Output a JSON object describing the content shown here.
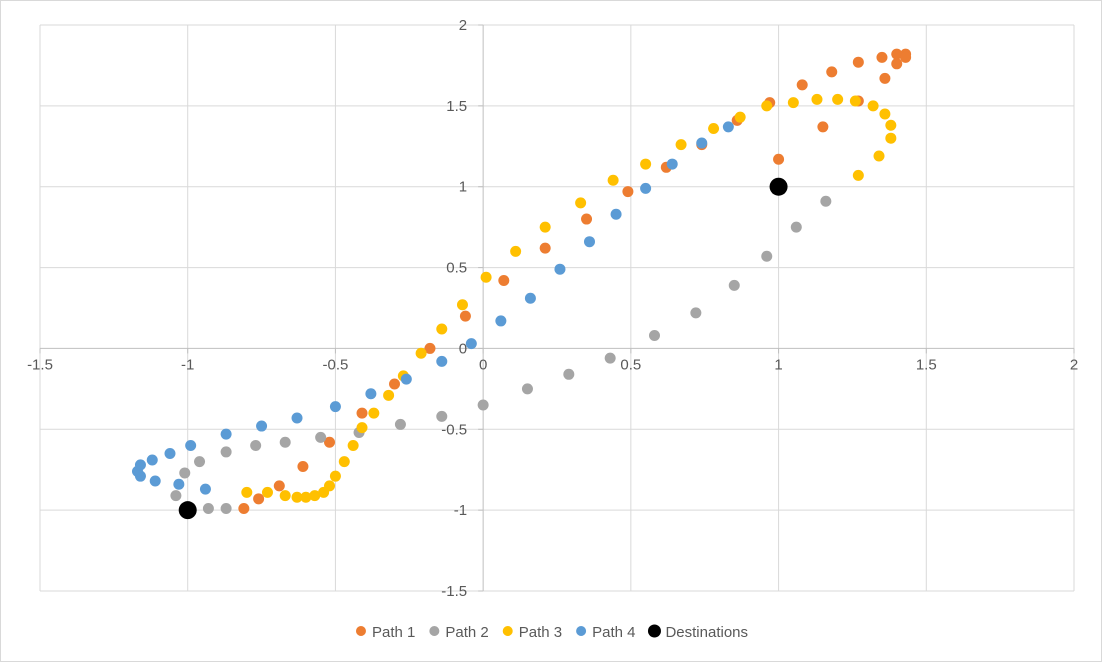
{
  "chart_data": {
    "type": "scatter",
    "title": "",
    "xlabel": "",
    "ylabel": "",
    "xlim": [
      -1.5,
      2
    ],
    "ylim": [
      -1.5,
      2
    ],
    "x_ticks": [
      -1.5,
      -1,
      -0.5,
      0,
      0.5,
      1,
      1.5,
      2
    ],
    "y_ticks": [
      -1.5,
      -1,
      -0.5,
      0,
      0.5,
      1,
      1.5,
      2
    ],
    "x_tick_labels": [
      "-1.5",
      "-1",
      "-0.5",
      "0",
      "0.5",
      "1",
      "1.5",
      "2"
    ],
    "y_tick_labels": [
      "-1.5",
      "-1",
      "-0.5",
      "0",
      "0.5",
      "1",
      "1.5",
      "2"
    ],
    "grid": true,
    "legend_position": "bottom",
    "series": [
      {
        "name": "Path 1",
        "color": "#ED7D31",
        "points": [
          [
            -0.81,
            -0.99
          ],
          [
            -0.76,
            -0.93
          ],
          [
            -0.69,
            -0.85
          ],
          [
            -0.61,
            -0.73
          ],
          [
            -0.52,
            -0.58
          ],
          [
            -0.41,
            -0.4
          ],
          [
            -0.3,
            -0.22
          ],
          [
            -0.18,
            0.0
          ],
          [
            -0.06,
            0.2
          ],
          [
            0.07,
            0.42
          ],
          [
            0.21,
            0.62
          ],
          [
            0.35,
            0.8
          ],
          [
            0.49,
            0.97
          ],
          [
            0.62,
            1.12
          ],
          [
            0.74,
            1.26
          ],
          [
            0.86,
            1.41
          ],
          [
            0.97,
            1.52
          ],
          [
            1.08,
            1.63
          ],
          [
            1.18,
            1.71
          ],
          [
            1.27,
            1.77
          ],
          [
            1.35,
            1.8
          ],
          [
            1.4,
            1.82
          ],
          [
            1.43,
            1.82
          ],
          [
            1.43,
            1.8
          ],
          [
            1.4,
            1.76
          ],
          [
            1.36,
            1.67
          ],
          [
            1.27,
            1.53
          ],
          [
            1.15,
            1.37
          ],
          [
            1.0,
            1.17
          ]
        ]
      },
      {
        "name": "Path 2",
        "color": "#A5A5A5",
        "points": [
          [
            -1.04,
            -0.91
          ],
          [
            -1.01,
            -0.77
          ],
          [
            -0.96,
            -0.7
          ],
          [
            -0.87,
            -0.64
          ],
          [
            -0.77,
            -0.6
          ],
          [
            -0.67,
            -0.58
          ],
          [
            -0.55,
            -0.55
          ],
          [
            -0.42,
            -0.52
          ],
          [
            -0.28,
            -0.47
          ],
          [
            -0.14,
            -0.42
          ],
          [
            0.0,
            -0.35
          ],
          [
            0.15,
            -0.25
          ],
          [
            0.29,
            -0.16
          ],
          [
            0.43,
            -0.06
          ],
          [
            0.58,
            0.08
          ],
          [
            0.72,
            0.22
          ],
          [
            0.85,
            0.39
          ],
          [
            0.96,
            0.57
          ],
          [
            1.06,
            0.75
          ],
          [
            1.16,
            0.91
          ],
          [
            -0.87,
            -0.99
          ],
          [
            -0.93,
            -0.99
          ],
          [
            -1.0,
            -0.99
          ]
        ]
      },
      {
        "name": "Path 3",
        "color": "#FFC000",
        "points": [
          [
            -0.8,
            -0.89
          ],
          [
            -0.73,
            -0.89
          ],
          [
            -0.67,
            -0.91
          ],
          [
            -0.63,
            -0.92
          ],
          [
            -0.6,
            -0.92
          ],
          [
            -0.57,
            -0.91
          ],
          [
            -0.54,
            -0.89
          ],
          [
            -0.52,
            -0.85
          ],
          [
            -0.5,
            -0.79
          ],
          [
            -0.47,
            -0.7
          ],
          [
            -0.44,
            -0.6
          ],
          [
            -0.41,
            -0.49
          ],
          [
            -0.37,
            -0.4
          ],
          [
            -0.32,
            -0.29
          ],
          [
            -0.27,
            -0.17
          ],
          [
            -0.21,
            -0.03
          ],
          [
            -0.14,
            0.12
          ],
          [
            -0.07,
            0.27
          ],
          [
            0.01,
            0.44
          ],
          [
            0.11,
            0.6
          ],
          [
            0.21,
            0.75
          ],
          [
            0.33,
            0.9
          ],
          [
            0.44,
            1.04
          ],
          [
            0.55,
            1.14
          ],
          [
            0.67,
            1.26
          ],
          [
            0.78,
            1.36
          ],
          [
            0.87,
            1.43
          ],
          [
            0.96,
            1.5
          ],
          [
            1.05,
            1.52
          ],
          [
            1.13,
            1.54
          ],
          [
            1.2,
            1.54
          ],
          [
            1.26,
            1.53
          ],
          [
            1.32,
            1.5
          ],
          [
            1.36,
            1.45
          ],
          [
            1.38,
            1.38
          ],
          [
            1.38,
            1.3
          ],
          [
            1.34,
            1.19
          ],
          [
            1.27,
            1.07
          ]
        ]
      },
      {
        "name": "Path 4",
        "color": "#5B9BD5",
        "points": [
          [
            -0.94,
            -0.87
          ],
          [
            -1.03,
            -0.84
          ],
          [
            -1.11,
            -0.82
          ],
          [
            -1.16,
            -0.79
          ],
          [
            -1.17,
            -0.76
          ],
          [
            -1.16,
            -0.72
          ],
          [
            -1.12,
            -0.69
          ],
          [
            -1.06,
            -0.65
          ],
          [
            -0.99,
            -0.6
          ],
          [
            -0.87,
            -0.53
          ],
          [
            -0.75,
            -0.48
          ],
          [
            -0.63,
            -0.43
          ],
          [
            -0.5,
            -0.36
          ],
          [
            -0.38,
            -0.28
          ],
          [
            -0.26,
            -0.19
          ],
          [
            -0.14,
            -0.08
          ],
          [
            -0.04,
            0.03
          ],
          [
            0.06,
            0.17
          ],
          [
            0.16,
            0.31
          ],
          [
            0.26,
            0.49
          ],
          [
            0.36,
            0.66
          ],
          [
            0.45,
            0.83
          ],
          [
            0.55,
            0.99
          ],
          [
            0.64,
            1.14
          ],
          [
            0.74,
            1.27
          ],
          [
            0.83,
            1.37
          ]
        ]
      },
      {
        "name": "Destinations",
        "color": "#000000",
        "points": [
          [
            -1,
            -1
          ],
          [
            1,
            1
          ]
        ]
      }
    ]
  }
}
